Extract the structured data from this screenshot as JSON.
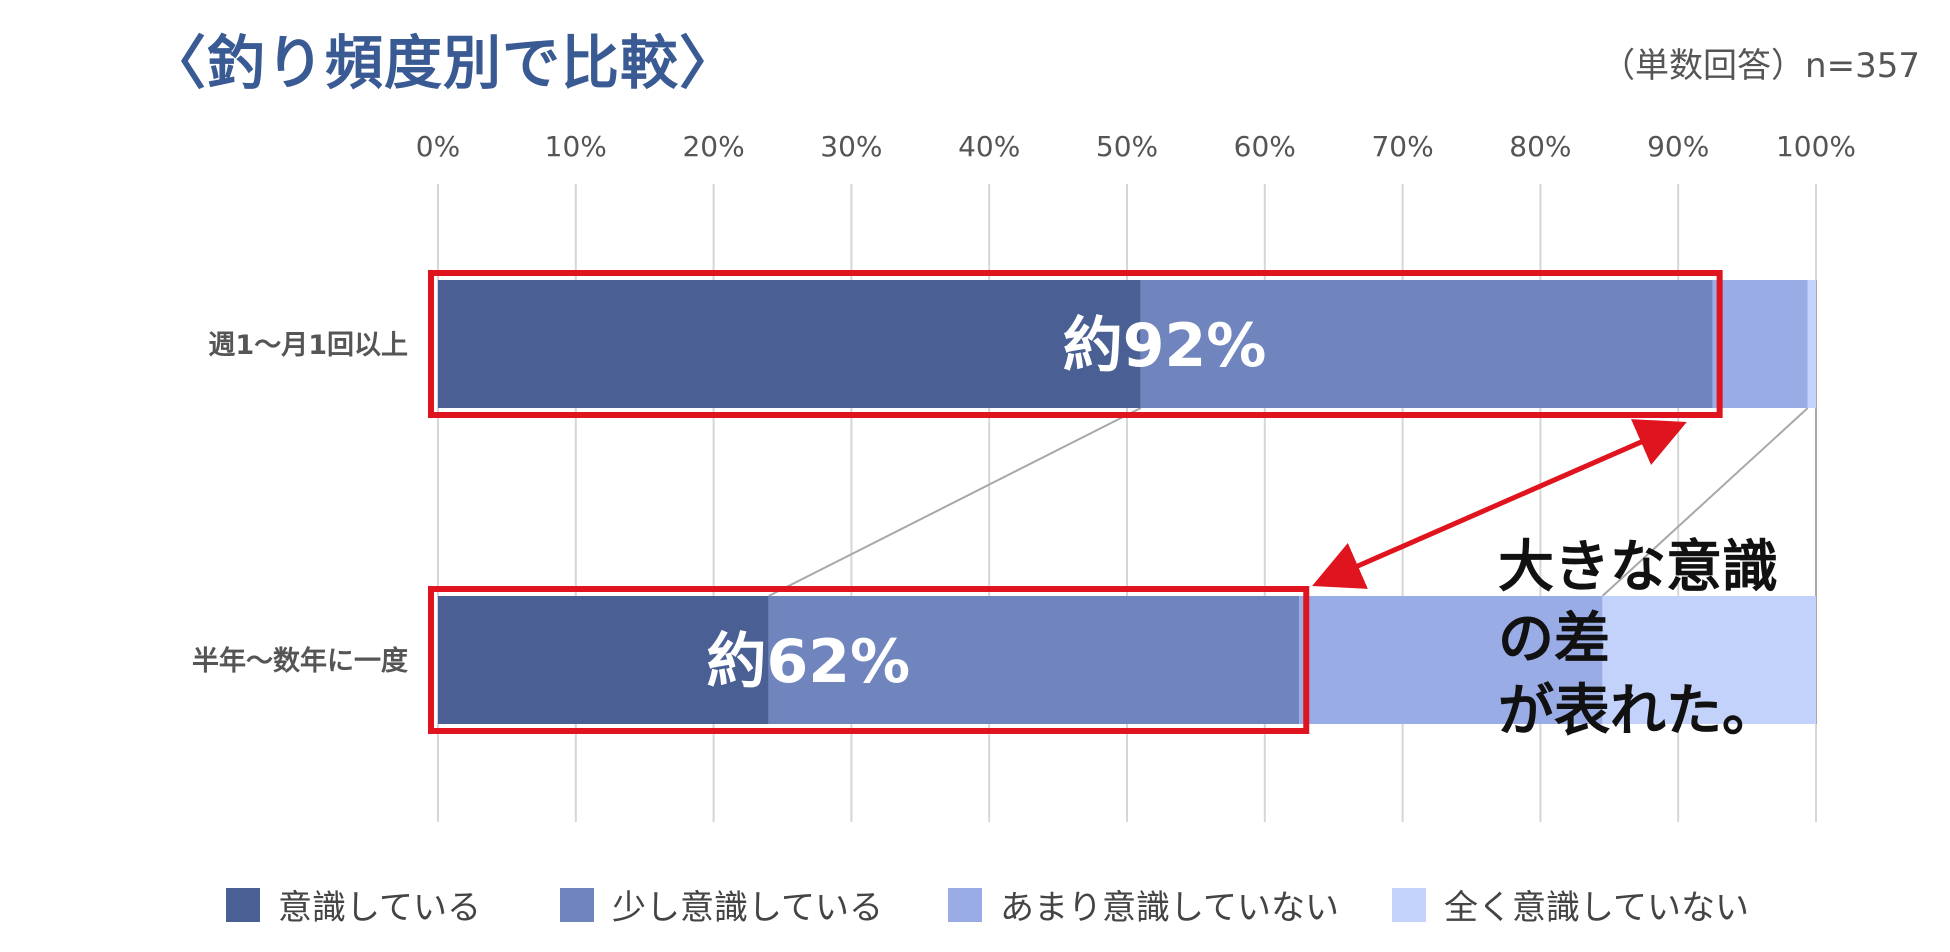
{
  "title": "〈釣り頻度別で比較〉",
  "sample_note": "（単数回答）n=357",
  "chart_data": {
    "type": "bar",
    "orientation": "horizontal",
    "stacked": true,
    "percent_scale": true,
    "xlim": [
      0,
      100
    ],
    "x_ticks": [
      "0%",
      "10%",
      "20%",
      "30%",
      "40%",
      "50%",
      "60%",
      "70%",
      "80%",
      "90%",
      "100%"
    ],
    "x_axis_position": "top",
    "grid": true,
    "legend_position": "bottom",
    "categories": [
      "週1～月1回以上",
      "半年～数年に一度"
    ],
    "series": [
      {
        "name": "意識している",
        "values": [
          51,
          24
        ],
        "color": "#4a6094"
      },
      {
        "name": "少し意識している",
        "values": [
          41.5,
          38.5
        ],
        "color": "#7084be"
      },
      {
        "name": "あまり意識していない",
        "values": [
          6.9,
          22
        ],
        "color": "#9aace6"
      },
      {
        "name": "全く意識していない",
        "values": [
          0.6,
          15.5
        ],
        "color": "#c3d2fa"
      }
    ],
    "bar_callouts": [
      "約92%",
      "約62%"
    ],
    "highlight_color": "#e0141e",
    "annotation_lines": [
      "大きな意識",
      "の差",
      "が表れた。"
    ]
  }
}
